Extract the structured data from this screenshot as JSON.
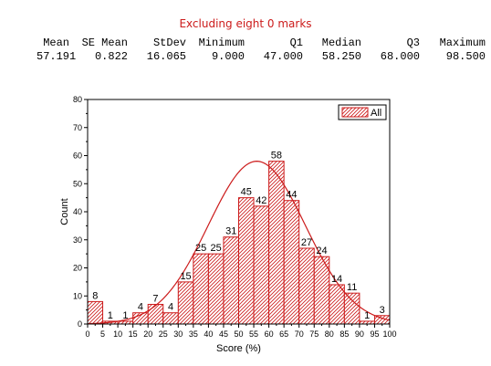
{
  "caption": {
    "text": "Excluding eight 0 marks",
    "color": "#cc1b1b"
  },
  "stats": {
    "headers": [
      "Mean",
      "SE Mean",
      "StDev",
      "Minimum",
      "Q1",
      "Median",
      "Q3",
      "Maximum"
    ],
    "values": [
      "57.191",
      "0.822",
      "16.065",
      "9.000",
      "47.000",
      "58.250",
      "68.000",
      "98.500"
    ]
  },
  "colors": {
    "bar": "#cc1b1b",
    "curve": "#cc1b1b",
    "axis": "#000000"
  },
  "chart_data": {
    "type": "bar",
    "subtype": "histogram",
    "xlabel": "Score (%)",
    "ylabel": "Count",
    "xlim": [
      0,
      100
    ],
    "ylim": [
      0,
      80
    ],
    "xticks": [
      0,
      5,
      10,
      15,
      20,
      25,
      30,
      35,
      40,
      45,
      50,
      55,
      60,
      65,
      70,
      75,
      80,
      85,
      90,
      95,
      100
    ],
    "yticks": [
      0,
      10,
      20,
      30,
      40,
      50,
      60,
      70,
      80
    ],
    "bin_width": 5,
    "bin_starts": [
      0,
      5,
      10,
      15,
      20,
      25,
      30,
      35,
      40,
      45,
      50,
      55,
      60,
      65,
      70,
      75,
      80,
      85,
      90,
      95
    ],
    "values": [
      8,
      1,
      1,
      4,
      7,
      4,
      15,
      25,
      25,
      31,
      45,
      42,
      58,
      44,
      27,
      24,
      14,
      11,
      1,
      3
    ],
    "bar_labels": [
      "8",
      "1",
      "1",
      "4",
      "7",
      "4",
      "15",
      "25",
      "25",
      "31",
      "45",
      "42",
      "58",
      "44",
      "27",
      "24",
      "14",
      "11",
      "1",
      "3"
    ],
    "series": [
      {
        "name": "All"
      }
    ],
    "legend": {
      "position": "top-right",
      "label": "All"
    },
    "overlay": {
      "type": "normal-curve",
      "mean": 57.191,
      "stdev": 16.065,
      "peak": 58,
      "peak_at": 56
    },
    "grid": false
  }
}
